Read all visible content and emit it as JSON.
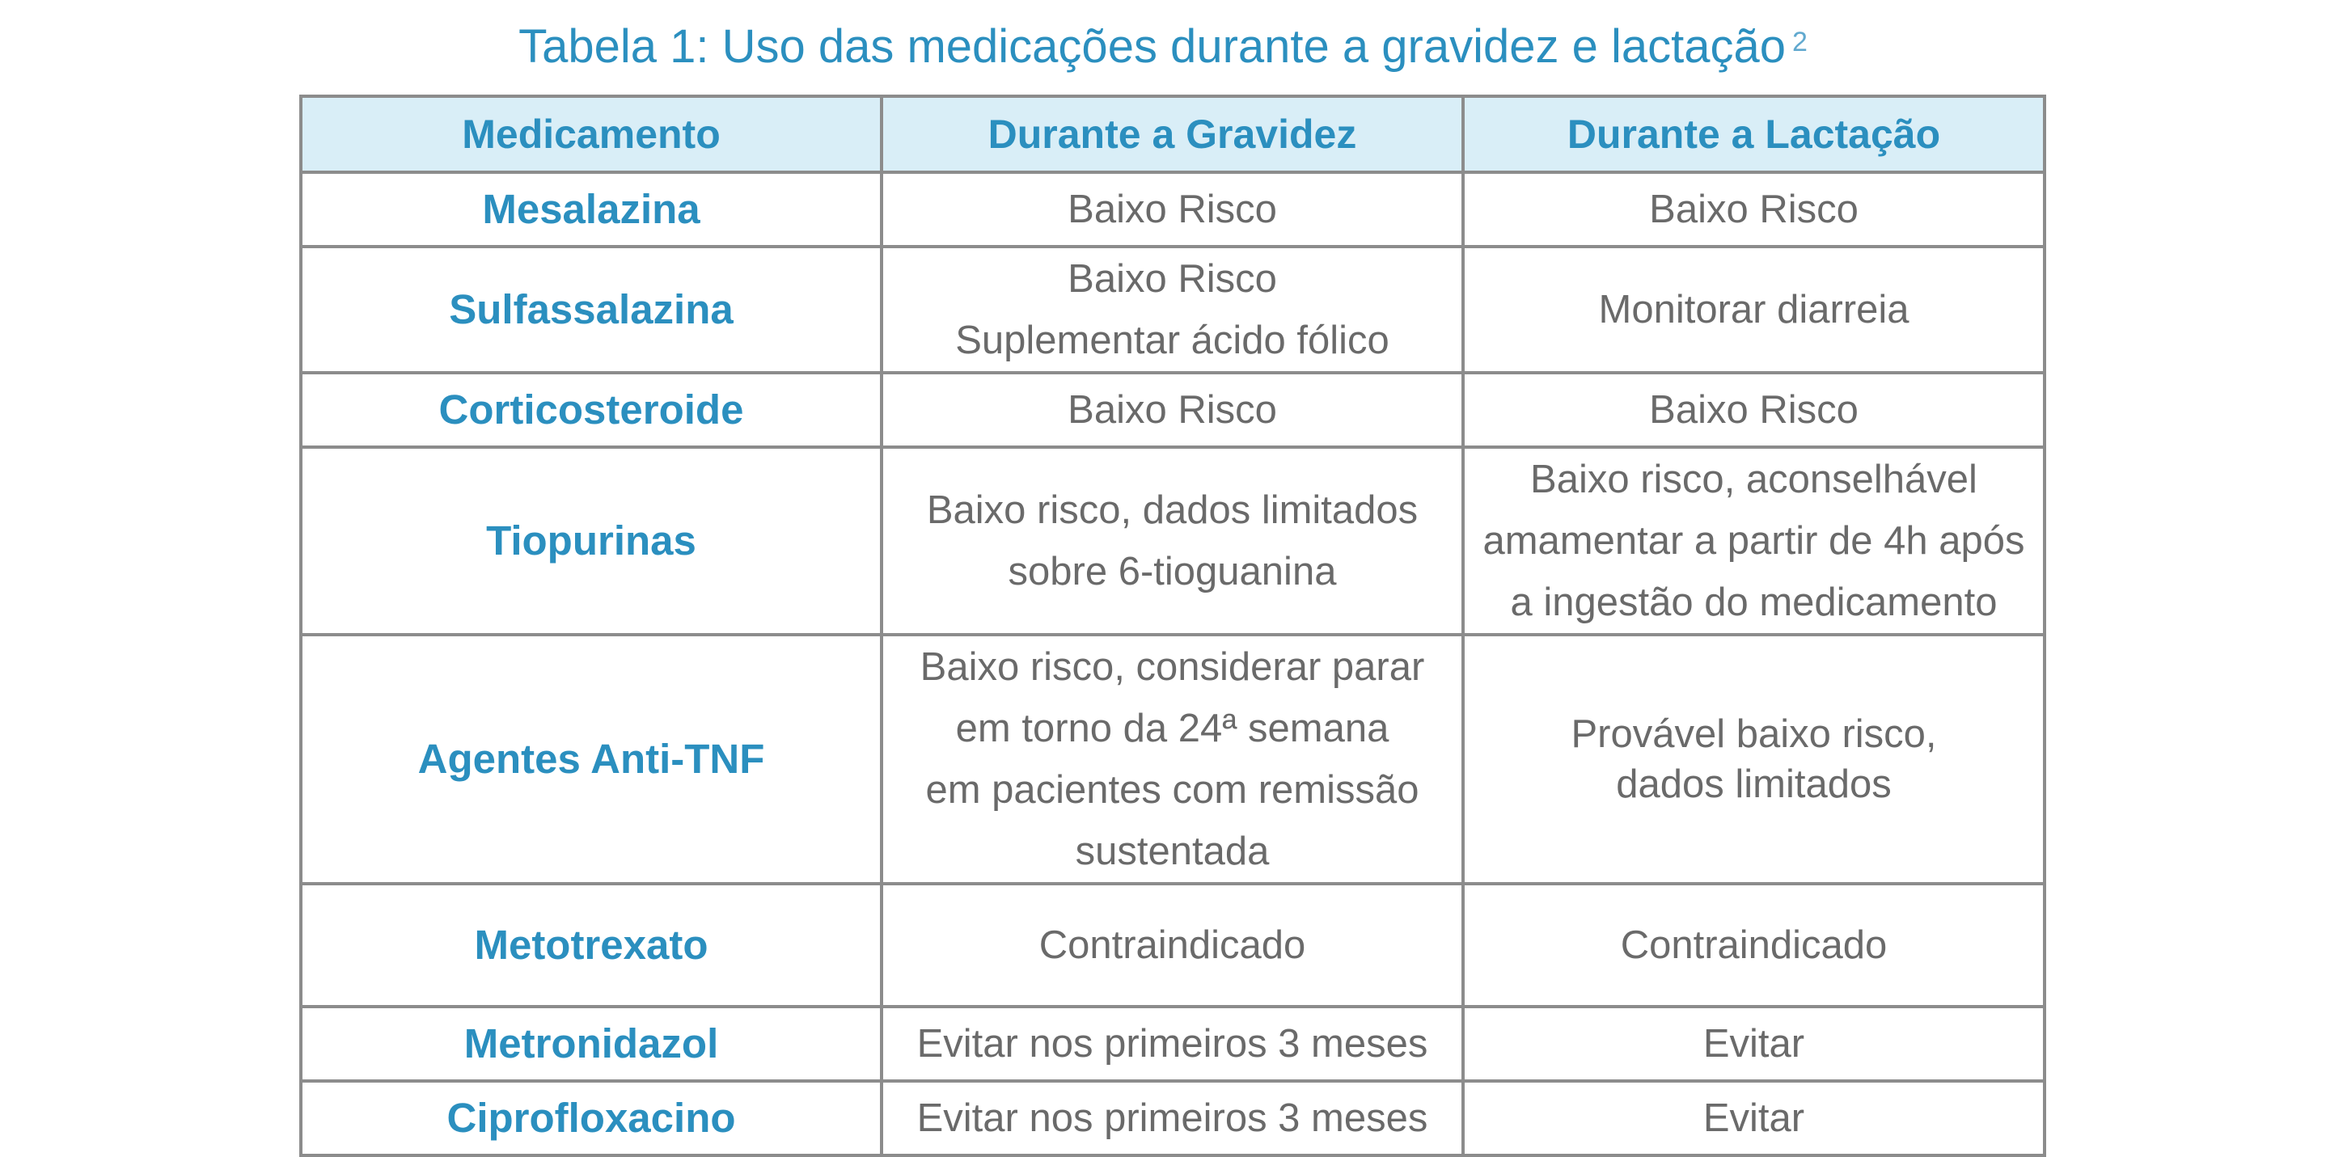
{
  "title": {
    "text": "Tabela 1: Uso das medicações durante a gravidez e lactação",
    "reference": "2"
  },
  "table": {
    "headers": [
      "Medicamento",
      "Durante a Gravidez",
      "Durante a Lactação"
    ],
    "rows": [
      {
        "drug": "Mesalazina",
        "pregnancy": [
          "Baixo Risco"
        ],
        "lactation": [
          "Baixo Risco"
        ]
      },
      {
        "drug": "Sulfassalazina",
        "pregnancy": [
          "Baixo Risco",
          "Suplementar ácido fólico"
        ],
        "lactation": [
          "Monitorar diarreia"
        ]
      },
      {
        "drug": "Corticosteroide",
        "pregnancy": [
          "Baixo Risco"
        ],
        "lactation": [
          "Baixo Risco"
        ]
      },
      {
        "drug": "Tiopurinas",
        "pregnancy": [
          "Baixo risco, dados limitados",
          "sobre 6-tioguanina"
        ],
        "lactation": [
          "Baixo risco, aconselhável",
          "amamentar a partir de 4h após",
          "a ingestão do medicamento"
        ]
      },
      {
        "drug": "Agentes Anti-TNF",
        "pregnancy": [
          "Baixo risco, considerar parar",
          "em torno da 24ª semana",
          "em pacientes com remissão",
          "sustentada"
        ],
        "lactation": [
          "Provável baixo risco,",
          "dados limitados"
        ]
      },
      {
        "drug": "Metotrexato",
        "pregnancy": [
          "Contraindicado"
        ],
        "lactation": [
          "Contraindicado"
        ]
      },
      {
        "drug": "Metronidazol",
        "pregnancy": [
          "Evitar nos primeiros 3 meses"
        ],
        "lactation": [
          "Evitar"
        ]
      },
      {
        "drug": "Ciprofloxacino",
        "pregnancy": [
          "Evitar nos primeiros 3 meses"
        ],
        "lactation": [
          "Evitar"
        ]
      }
    ]
  },
  "colors": {
    "accent": "#2b8fbf",
    "header_bg": "#d9eef7",
    "body_text": "#6a6a6a",
    "border": "#8c8c8c"
  }
}
